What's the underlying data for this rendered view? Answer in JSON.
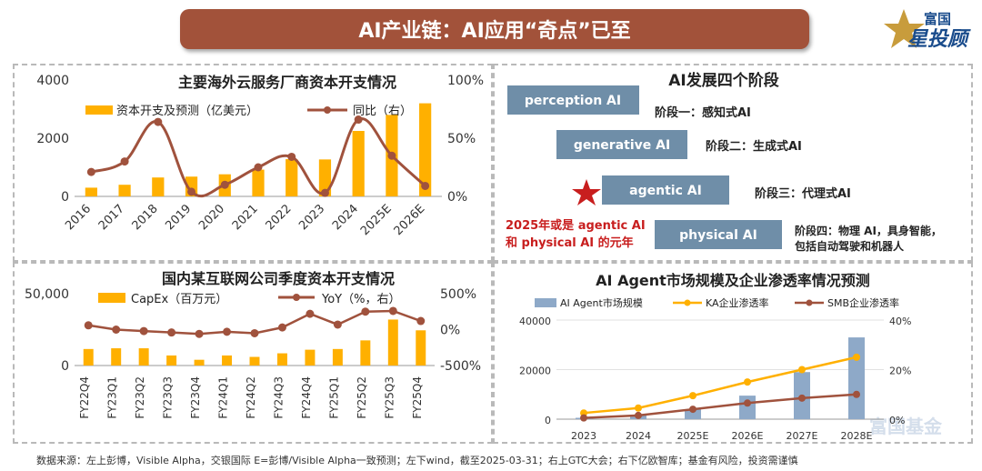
{
  "banner": {
    "title": "AI产业链：AI应用“奇点”已至"
  },
  "logo": {
    "line1": "富国",
    "line2": "星投顾"
  },
  "watermark": "富国基金",
  "source_note": "数据来源：左上彭博，Visible Alpha，交银国际 E=彭博/Visible Alpha一致预测；左下wind，截至2025-03-31；右上GTC大会；右下亿欧智库；基金有风险，投资需谨慎",
  "colors": {
    "bar": "#ffb000",
    "line": "#a0523d",
    "box": "#6f8ea8",
    "star": "#c81e1e",
    "ka": "#ffb000",
    "smb": "#a0523d",
    "market_bar": "#8ea9c8"
  },
  "chart_data": [
    {
      "type": "bar",
      "id": "overseas_capex",
      "title": "主要海外云服务厂商资本开支情况",
      "categories": [
        "2016",
        "2017",
        "2018",
        "2019",
        "2020",
        "2021",
        "2022",
        "2023",
        "2024",
        "2025E",
        "2026E"
      ],
      "series": [
        {
          "name": "资本开支及预测（亿美元）",
          "axis": "left",
          "kind": "bar",
          "values": [
            300,
            400,
            650,
            680,
            760,
            920,
            1280,
            1270,
            2250,
            2800,
            3200
          ]
        },
        {
          "name": "同比（右）",
          "axis": "right",
          "kind": "line",
          "values": [
            21,
            30,
            64,
            4,
            10,
            25,
            34,
            3,
            66,
            35,
            9
          ]
        }
      ],
      "ylim_left": [
        0,
        4000
      ],
      "yticks_left": [
        "0",
        "2000",
        "4000"
      ],
      "ytick_values_left": [
        0,
        2000,
        4000
      ],
      "ylim_right": [
        0,
        100
      ],
      "yticks_right": [
        "0%",
        "50%",
        "100%"
      ],
      "ytick_values_right": [
        0,
        50,
        100
      ]
    },
    {
      "type": "bar",
      "id": "domestic_capex",
      "title": "国内某互联网公司季度资本开支情况",
      "categories": [
        "FY22Q4",
        "FY23Q1",
        "FY23Q2",
        "FY23Q3",
        "FY23Q4",
        "FY24Q1",
        "FY24Q2",
        "FY24Q3",
        "FY24Q4",
        "FY25Q1",
        "FY25Q2",
        "FY25Q3",
        "FY25Q4"
      ],
      "series": [
        {
          "name": "CapEx（百万元）",
          "axis": "left",
          "kind": "bar",
          "values": [
            11500,
            12000,
            12000,
            7000,
            4000,
            7000,
            6000,
            8500,
            11000,
            11500,
            17500,
            32000,
            24500
          ]
        },
        {
          "name": "YoY（%，右）",
          "axis": "right",
          "kind": "line",
          "values": [
            60,
            0,
            -20,
            -40,
            -60,
            -30,
            -50,
            30,
            220,
            70,
            250,
            260,
            120
          ]
        }
      ],
      "ylim_left": [
        0,
        50000
      ],
      "yticks_left": [
        "0",
        "50,000"
      ],
      "ytick_values_left": [
        0,
        50000
      ],
      "ylim_right": [
        -500,
        500
      ],
      "yticks_right": [
        "-500%",
        "0%",
        "500%"
      ],
      "ytick_values_right": [
        -500,
        0,
        500
      ]
    },
    {
      "type": "bar",
      "id": "ai_agent_market",
      "title": "AI Agent市场规模及企业渗透率情况预测",
      "categories": [
        "2023",
        "2024",
        "2025E",
        "2026E",
        "2027E",
        "2028E"
      ],
      "series": [
        {
          "name": "AI Agent市场规模",
          "axis": "left",
          "kind": "bar",
          "values": [
            550,
            1500,
            4000,
            9500,
            19000,
            33000
          ]
        },
        {
          "name": "KA企业渗透率",
          "axis": "right",
          "kind": "line",
          "values": [
            2.5,
            4.5,
            9.5,
            15,
            20,
            25
          ]
        },
        {
          "name": "SMB企业渗透率",
          "axis": "right",
          "kind": "line",
          "values": [
            0.5,
            1.5,
            4,
            6.5,
            8.5,
            10
          ]
        }
      ],
      "ylim_left": [
        0,
        40000
      ],
      "yticks_left": [
        "0",
        "20000",
        "40000"
      ],
      "ytick_values_left": [
        0,
        20000,
        40000
      ],
      "ylim_right": [
        0,
        40
      ],
      "yticks_right": [
        "0%",
        "20%",
        "40%"
      ],
      "ytick_values_right": [
        0,
        20,
        40
      ]
    }
  ],
  "stages": {
    "title": "AI发展四个阶段",
    "items": [
      {
        "box": "perception AI",
        "label": "阶段一：感知式AI"
      },
      {
        "box": "generative AI",
        "label": "阶段二：生成式AI"
      },
      {
        "box": "agentic AI",
        "label": "阶段三：代理式AI"
      },
      {
        "box": "physical AI",
        "label": "阶段四：物理 AI，具身智能，",
        "label2": "包括自动驾驶和机器人"
      }
    ],
    "note_line1": "2025年或是 agentic AI",
    "note_line2": "和 physical AI 的元年"
  }
}
